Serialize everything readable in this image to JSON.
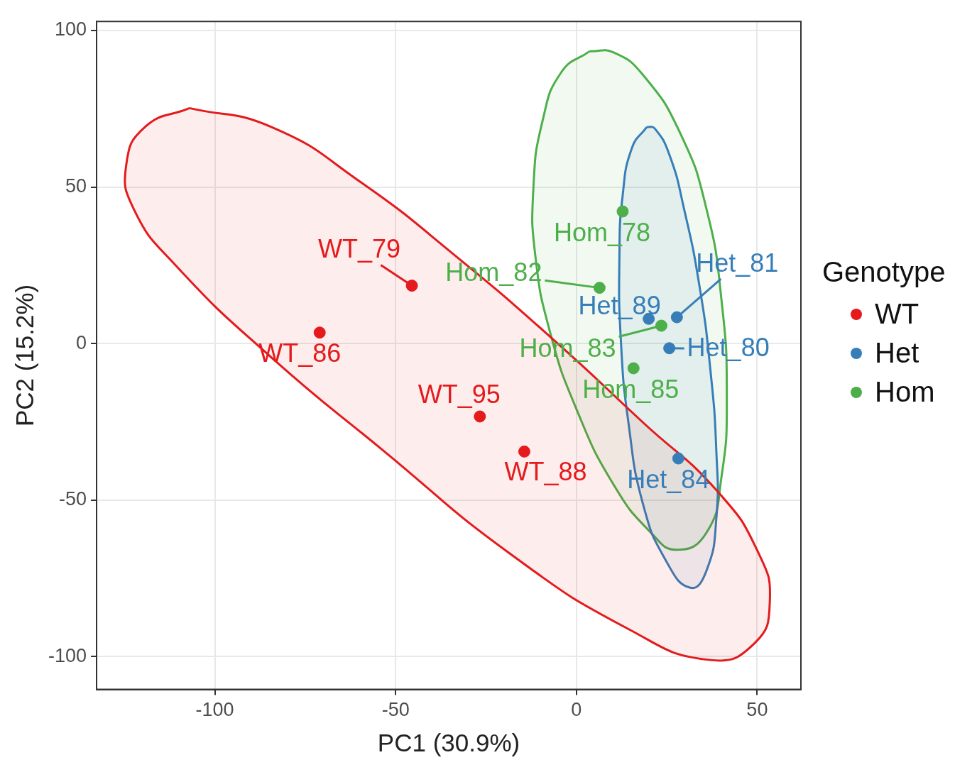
{
  "chart_data": {
    "type": "scatter",
    "xlabel": "PC1 (30.9%)",
    "ylabel": "PC2 (15.2%)",
    "legend_title": "Genotype",
    "legend": "right",
    "grid": true,
    "marker": "circle",
    "xlim": [
      -132.7,
      62.1
    ],
    "xticks": [
      -100,
      -50,
      0,
      50
    ],
    "ylim": [
      -110.5,
      102.9
    ],
    "yticks": [
      -100,
      -50,
      0,
      50,
      100
    ],
    "series": [
      {
        "name": "WT",
        "color": "#e41a1c",
        "x": [
          -45.5,
          -71,
          -26.7,
          -14.4
        ],
        "values": [
          18.5,
          3.5,
          -23.3,
          -34.5
        ]
      },
      {
        "name": "Het",
        "color": "#377eb8",
        "x": [
          27.8,
          20,
          25.7,
          28.2
        ],
        "values": [
          8.4,
          7.9,
          -1.5,
          -36.7
        ]
      },
      {
        "name": "Hom",
        "color": "#4daf4a",
        "x": [
          12.8,
          6.4,
          23.5,
          15.8
        ],
        "values": [
          42.2,
          17.8,
          5.7,
          -7.9
        ]
      },
      {
        "type": "area",
        "marker": "none",
        "color": "#e41a1c",
        "x": [
          -107.0,
          -119.3,
          -124.5,
          -122.4,
          -111.1,
          -84.4,
          -53.5,
          -18.5,
          14.4,
          37.0,
          49.4,
          53.5,
          50.4,
          39.1,
          18.5,
          -6.2,
          -32.9,
          -59.7,
          -84.4,
          -107.0
        ],
        "values": [
          75.2,
          69.2,
          57.1,
          42.9,
          25.3,
          -4.4,
          -34.1,
          -67.0,
          -91.2,
          -101.1,
          -95.6,
          -82.4,
          -67.0,
          -47.3,
          -25.3,
          1.1,
          27.5,
          51.6,
          69.2,
          75.2
        ]
      },
      {
        "type": "area",
        "marker": "none",
        "color": "#377eb8",
        "x": [
          19.5,
          15.4,
          12.8,
          11.9,
          12.3,
          14.4,
          18.5,
          24.7,
          31.5,
          36.0,
          38.7,
          38.7,
          37.0,
          34.0,
          29.8,
          25.7,
          21.6,
          19.5
        ],
        "values": [
          69.2,
          62.6,
          47.3,
          27.5,
          1.1,
          -25.3,
          -51.6,
          -69.2,
          -78.0,
          -72.5,
          -56.0,
          -34.1,
          -7.7,
          18.7,
          42.9,
          60.4,
          68.8,
          69.2
        ]
      },
      {
        "type": "area",
        "marker": "none",
        "color": "#4daf4a",
        "x": [
          3.7,
          -4.1,
          -9.3,
          -11.9,
          -11.3,
          -7.2,
          0,
          10.3,
          20.6,
          27.8,
          36.0,
          40.1,
          41.6,
          40.1,
          36.0,
          28.8,
          18.5,
          10.3,
          3.7
        ],
        "values": [
          93.4,
          86.8,
          71.4,
          49.5,
          27.5,
          3.3,
          -20.9,
          -45.1,
          -60.4,
          -65.9,
          -60.4,
          -42.9,
          -16.5,
          14.3,
          42.9,
          67.0,
          85.7,
          93.0,
          93.4
        ]
      }
    ],
    "annotations": [
      {
        "text": "WT_79",
        "x": -45.5,
        "y": 18.5
      },
      {
        "text": "WT_86",
        "x": -71,
        "y": 3.5
      },
      {
        "text": "WT_95",
        "x": -26.7,
        "y": -23.3
      },
      {
        "text": "WT_88",
        "x": -14.4,
        "y": -34.5
      },
      {
        "text": "Het_81",
        "x": 27.8,
        "y": 8.4
      },
      {
        "text": "Het_89",
        "x": 20,
        "y": 7.9
      },
      {
        "text": "Het_80",
        "x": 25.7,
        "y": -1.5
      },
      {
        "text": "Het_84",
        "x": 28.2,
        "y": -36.7
      },
      {
        "text": "Hom_78",
        "x": 12.8,
        "y": 42.2
      },
      {
        "text": "Hom_82",
        "x": 6.4,
        "y": 17.8
      },
      {
        "text": "Hom_83",
        "x": 23.5,
        "y": 5.7
      },
      {
        "text": "Hom_85",
        "x": 15.8,
        "y": -7.9
      }
    ]
  }
}
